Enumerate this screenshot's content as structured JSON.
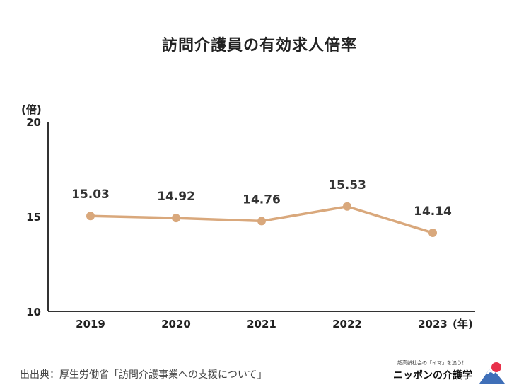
{
  "title": "訪問介護員の有効求人倍率",
  "source": "出出典：厚生労働省「訪問介護事業への支援について」",
  "logo": {
    "tagline": "超高齢社会の「イマ」を追う！",
    "name": "ニッポンの介護学",
    "icon": "mount-fuji-sun-icon"
  },
  "colors": {
    "line": "#d9a87c",
    "axis": "#333333"
  },
  "chart_data": {
    "type": "line",
    "title": "訪問介護員の有効求人倍率",
    "categories": [
      "2019",
      "2020",
      "2021",
      "2022",
      "2023"
    ],
    "values": [
      15.03,
      14.92,
      14.76,
      15.53,
      14.14
    ],
    "data_labels": [
      "15.03",
      "14.92",
      "14.76",
      "15.53",
      "14.14"
    ],
    "ylabel": "(倍)",
    "xlabel": "(年)",
    "ylim": [
      10,
      20
    ],
    "yticks": [
      "10",
      "15",
      "20"
    ],
    "grid": false,
    "legend": "none"
  }
}
